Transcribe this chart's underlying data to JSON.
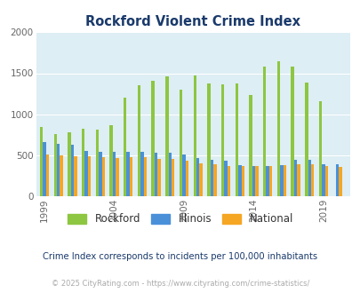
{
  "title": "Rockford Violent Crime Index",
  "title_color": "#1a3a6b",
  "subtitle": "Crime Index corresponds to incidents per 100,000 inhabitants",
  "footer": "© 2025 CityRating.com - https://www.cityrating.com/crime-statistics/",
  "years": [
    1999,
    2000,
    2001,
    2002,
    2003,
    2004,
    2005,
    2006,
    2007,
    2008,
    2009,
    2010,
    2011,
    2012,
    2013,
    2014,
    2015,
    2016,
    2017,
    2018,
    2019,
    2020
  ],
  "rockford": [
    840,
    760,
    775,
    820,
    810,
    870,
    1200,
    1350,
    1410,
    1460,
    1300,
    1470,
    1380,
    1360,
    1380,
    1240,
    1580,
    1650,
    1580,
    1390,
    1160,
    0
  ],
  "illinois": [
    665,
    640,
    630,
    555,
    545,
    540,
    540,
    545,
    535,
    530,
    510,
    470,
    440,
    435,
    380,
    370,
    370,
    375,
    450,
    450,
    390,
    395
  ],
  "national": [
    505,
    500,
    490,
    490,
    475,
    465,
    480,
    475,
    455,
    460,
    435,
    405,
    390,
    365,
    365,
    370,
    373,
    383,
    395,
    388,
    365,
    355
  ],
  "bar_width": 0.22,
  "ylim": [
    0,
    2000
  ],
  "yticks": [
    0,
    500,
    1000,
    1500,
    2000
  ],
  "xticks": [
    1999,
    2004,
    2009,
    2014,
    2019
  ],
  "color_rockford": "#8dc641",
  "color_illinois": "#4a90d9",
  "color_national": "#f5a623",
  "plot_bg": "#ddeef4",
  "grid_color": "#ffffff",
  "legend_text_color": "#333333",
  "subtitle_color": "#1a3a6b",
  "footer_color": "#aaaaaa"
}
